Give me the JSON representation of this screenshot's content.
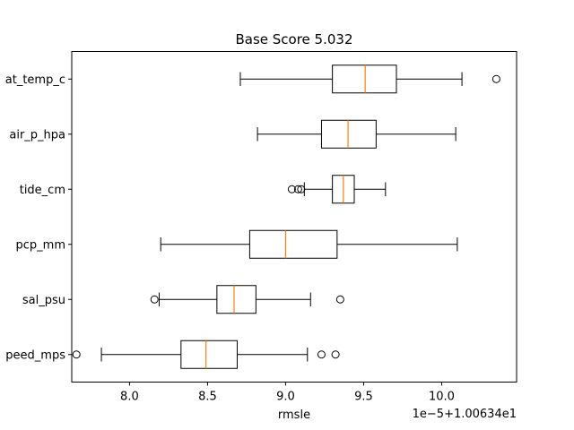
{
  "chart_data": {
    "type": "boxplot",
    "title": "Base Score 5.032",
    "xlabel": "rmsle",
    "ylabel": "",
    "offset_label": "1e−5+1.00634e1",
    "xlim": [
      7.63,
      10.48
    ],
    "xticks": [
      8.0,
      8.5,
      9.0,
      9.5,
      10.0
    ],
    "xtick_labels": [
      "8.0",
      "8.5",
      "9.0",
      "9.5",
      "10.0"
    ],
    "grid": false,
    "categories": [
      "at_temp_c",
      "air_p_hpa",
      "tide_cm",
      "pcp_mm",
      "sal_psu",
      "peed_mps"
    ],
    "boxes": [
      {
        "label": "at_temp_c",
        "whisker_low": 8.71,
        "q1": 9.3,
        "median": 9.51,
        "q3": 9.71,
        "whisker_high": 10.13,
        "fliers": [
          10.35
        ]
      },
      {
        "label": "air_p_hpa",
        "whisker_low": 8.82,
        "q1": 9.23,
        "median": 9.4,
        "q3": 9.58,
        "whisker_high": 10.09,
        "fliers": []
      },
      {
        "label": "tide_cm",
        "whisker_low": 9.12,
        "q1": 9.3,
        "median": 9.37,
        "q3": 9.44,
        "whisker_high": 9.64,
        "fliers": [
          9.04,
          9.08,
          9.1
        ]
      },
      {
        "label": "pcp_mm",
        "whisker_low": 8.2,
        "q1": 8.77,
        "median": 9.0,
        "q3": 9.33,
        "whisker_high": 10.1,
        "fliers": []
      },
      {
        "label": "sal_psu",
        "whisker_low": 8.19,
        "q1": 8.56,
        "median": 8.67,
        "q3": 8.81,
        "whisker_high": 9.16,
        "fliers": [
          8.16,
          9.35
        ]
      },
      {
        "label": "peed_mps",
        "whisker_low": 7.82,
        "q1": 8.33,
        "median": 8.49,
        "q3": 8.69,
        "whisker_high": 9.14,
        "fliers": [
          7.66,
          9.23,
          9.32
        ]
      }
    ],
    "colors": {
      "median": "#ff7f0e",
      "box": "#000000",
      "flier": "#000000"
    }
  }
}
